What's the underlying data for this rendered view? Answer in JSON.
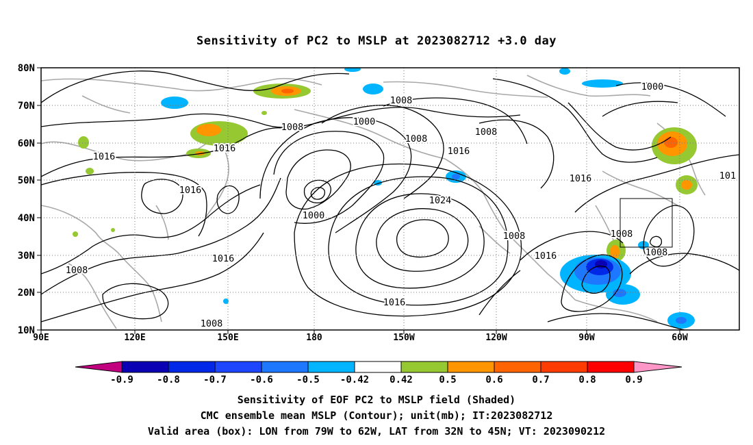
{
  "title": "Sensitivity of PC2 to MSLP at 2023082712 +3.0 day",
  "lat_labels": [
    "80N",
    "70N",
    "60N",
    "50N",
    "40N",
    "30N",
    "20N",
    "10N"
  ],
  "lon_labels": [
    "90E",
    "120E",
    "150E",
    "180",
    "150W",
    "120W",
    "90W",
    "60W"
  ],
  "contour_labels": [
    "1008",
    "1000",
    "1008",
    "1016",
    "1000",
    "1008",
    "1016",
    "1008",
    "1000",
    "1016",
    "1016",
    "1016",
    "1000",
    "1024",
    "1008",
    "1016",
    "1008",
    "1008",
    "1016",
    "1016",
    "1008",
    "1008",
    "101"
  ],
  "colorbar": {
    "ticks": [
      "-0.9",
      "-0.8",
      "-0.7",
      "-0.6",
      "-0.5",
      "-0.42",
      "0.42",
      "0.5",
      "0.6",
      "0.7",
      "0.8",
      "0.9"
    ],
    "colors": [
      "#c0007f",
      "#0a00b4",
      "#0028e6",
      "#1e46ff",
      "#1e78ff",
      "#00b4ff",
      "#ffffff",
      "#96c832",
      "#ff9600",
      "#ff6400",
      "#ff3c00",
      "#ff0000",
      "#ff96c8"
    ]
  },
  "captions": [
    "Sensitivity of EOF PC2 to MSLP field (Shaded)",
    "CMC ensemble mean MSLP (Contour); unit(mb); IT:2023082712",
    "Valid area (box): LON from 79W to 62W, LAT from 32N to 45N; VT: 2023090212"
  ],
  "valid_area": {
    "lon_from": "79W",
    "lon_to": "62W",
    "lat_from": "32N",
    "lat_to": "45N"
  }
}
